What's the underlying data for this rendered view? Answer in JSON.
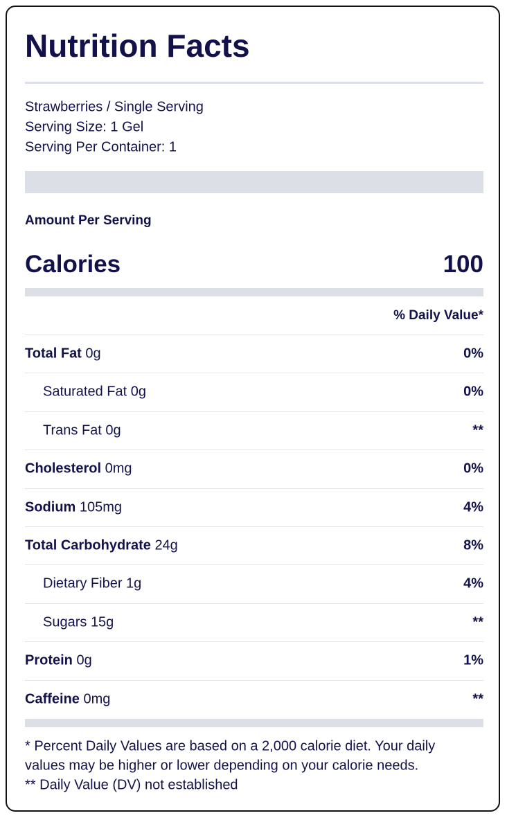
{
  "title": "Nutrition Facts",
  "product": [
    "Strawberries / Single Serving",
    "Serving Size: 1 Gel",
    "Serving Per Container: 1"
  ],
  "amount_per_serving": "Amount Per Serving",
  "calories": {
    "label": "Calories",
    "value": "100"
  },
  "daily_value_header": "% Daily Value*",
  "rows": [
    {
      "name": "Total Fat",
      "amount": "0g",
      "dv": "0%",
      "subrows": [
        {
          "name": "Saturated Fat",
          "amount": "0g",
          "dv": "0%"
        },
        {
          "name": "Trans Fat",
          "amount": "0g",
          "dv": "**"
        }
      ]
    },
    {
      "name": "Cholesterol",
      "amount": "0mg",
      "dv": "0%"
    },
    {
      "name": "Sodium",
      "amount": "105mg",
      "dv": "4%"
    },
    {
      "name": "Total Carbohydrate",
      "amount": "24g",
      "dv": "8%",
      "subrows": [
        {
          "name": "Dietary Fiber",
          "amount": "1g",
          "dv": "4%"
        },
        {
          "name": "Sugars",
          "amount": "15g",
          "dv": "**"
        }
      ]
    },
    {
      "name": "Protein",
      "amount": "0g",
      "dv": "1%"
    },
    {
      "name": "Caffeine",
      "amount": "0mg",
      "dv": "**"
    }
  ],
  "footnotes": [
    "* Percent Daily Values are based on a 2,000 calorie diet. Your daily",
    "values may be higher or lower depending on your calorie needs.",
    "** Daily Value (DV) not established"
  ]
}
